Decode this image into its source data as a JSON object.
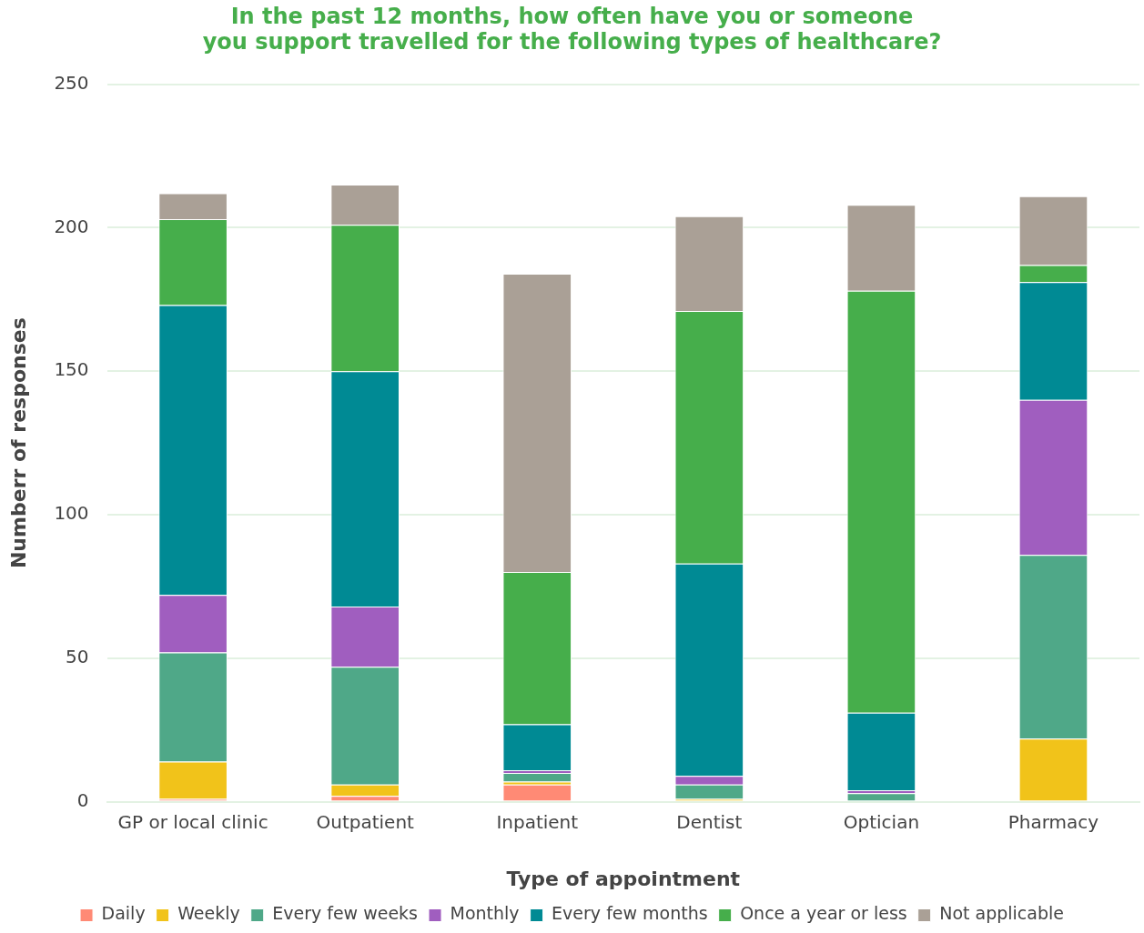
{
  "chart_data": {
    "type": "bar",
    "stacked": true,
    "title": "In the past 12 months, how often have you or someone you support travelled for the following types of healthcare?",
    "xlabel": "Type of appointment",
    "ylabel": "Numberr of responses",
    "categories": [
      "GP or local clinic",
      "Outpatient",
      "Inpatient",
      "Dentist",
      "Optician",
      "Pharmacy"
    ],
    "series": [
      {
        "name": "Daily",
        "color": "#ff8a75",
        "values": [
          1,
          2,
          6,
          0,
          0,
          0
        ]
      },
      {
        "name": "Weekly",
        "color": "#f1c31a",
        "values": [
          13,
          4,
          1,
          1,
          0,
          22
        ]
      },
      {
        "name": "Every few weeks",
        "color": "#4fa888",
        "values": [
          38,
          41,
          3,
          5,
          3,
          64
        ]
      },
      {
        "name": "Monthly",
        "color": "#a05ebf",
        "values": [
          20,
          21,
          1,
          3,
          1,
          54
        ]
      },
      {
        "name": "Every few months",
        "color": "#008a94",
        "values": [
          101,
          82,
          16,
          74,
          27,
          41
        ]
      },
      {
        "name": "Once a year or less",
        "color": "#46ae4b",
        "values": [
          30,
          51,
          53,
          88,
          147,
          6
        ]
      },
      {
        "name": "Not applicable",
        "color": "#aaa096",
        "values": [
          9,
          14,
          104,
          33,
          30,
          24
        ]
      }
    ],
    "ylim": [
      0,
      250
    ],
    "yticks": [
      0,
      50,
      100,
      150,
      200,
      250
    ],
    "grid": "y",
    "legend": "bottom"
  }
}
